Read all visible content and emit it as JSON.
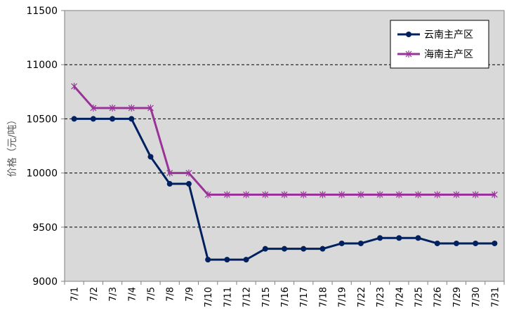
{
  "chart_data": {
    "type": "line",
    "title": "",
    "xlabel": "",
    "ylabel": "价格（元/吨）",
    "categories": [
      "7/1",
      "7/2",
      "7/3",
      "7/4",
      "7/5",
      "7/8",
      "7/9",
      "7/10",
      "7/11",
      "7/12",
      "7/15",
      "7/16",
      "7/17",
      "7/18",
      "7/19",
      "7/22",
      "7/23",
      "7/24",
      "7/25",
      "7/26",
      "7/29",
      "7/30",
      "7/31"
    ],
    "ylim": [
      9000,
      11500
    ],
    "yticks": [
      9000,
      9500,
      10000,
      10500,
      11000,
      11500
    ],
    "grid": true,
    "legend_position": "top-right",
    "background": "#d9d9d9",
    "series": [
      {
        "name": "云南主产区",
        "color": "#002060",
        "marker": "circle",
        "values": [
          10500,
          10500,
          10500,
          10500,
          10150,
          9900,
          9900,
          9200,
          9200,
          9200,
          9300,
          9300,
          9300,
          9300,
          9350,
          9350,
          9400,
          9400,
          9400,
          9350,
          9350,
          9350,
          9350
        ]
      },
      {
        "name": "海南主产区",
        "color": "#993399",
        "marker": "star",
        "values": [
          10800,
          10600,
          10600,
          10600,
          10600,
          10000,
          10000,
          9800,
          9800,
          9800,
          9800,
          9800,
          9800,
          9800,
          9800,
          9800,
          9800,
          9800,
          9800,
          9800,
          9800,
          9800,
          9800
        ]
      }
    ]
  }
}
